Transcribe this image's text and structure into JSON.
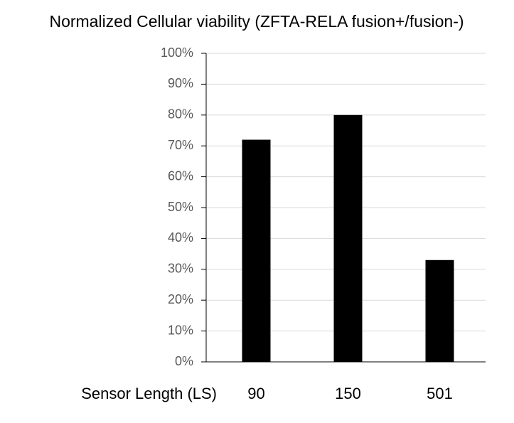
{
  "chart_data": {
    "type": "bar",
    "title": "Normalized Cellular viability (ZFTA-RELA fusion+/fusion-)",
    "x_label": "Sensor Length (LS)",
    "categories": [
      "90",
      "150",
      "501"
    ],
    "values": [
      72,
      80,
      33
    ],
    "color": "#000000",
    "ylim": [
      0,
      100
    ],
    "yticks": [
      {
        "value": 0,
        "label": "0%"
      },
      {
        "value": 10,
        "label": "10%"
      },
      {
        "value": 20,
        "label": "20%"
      },
      {
        "value": 30,
        "label": "30%"
      },
      {
        "value": 40,
        "label": "40%"
      },
      {
        "value": 50,
        "label": "50%"
      },
      {
        "value": 60,
        "label": "60%"
      },
      {
        "value": 70,
        "label": "70%"
      },
      {
        "value": 80,
        "label": "80%"
      },
      {
        "value": 90,
        "label": "90%"
      },
      {
        "value": 100,
        "label": "100%"
      }
    ],
    "grid": true
  }
}
